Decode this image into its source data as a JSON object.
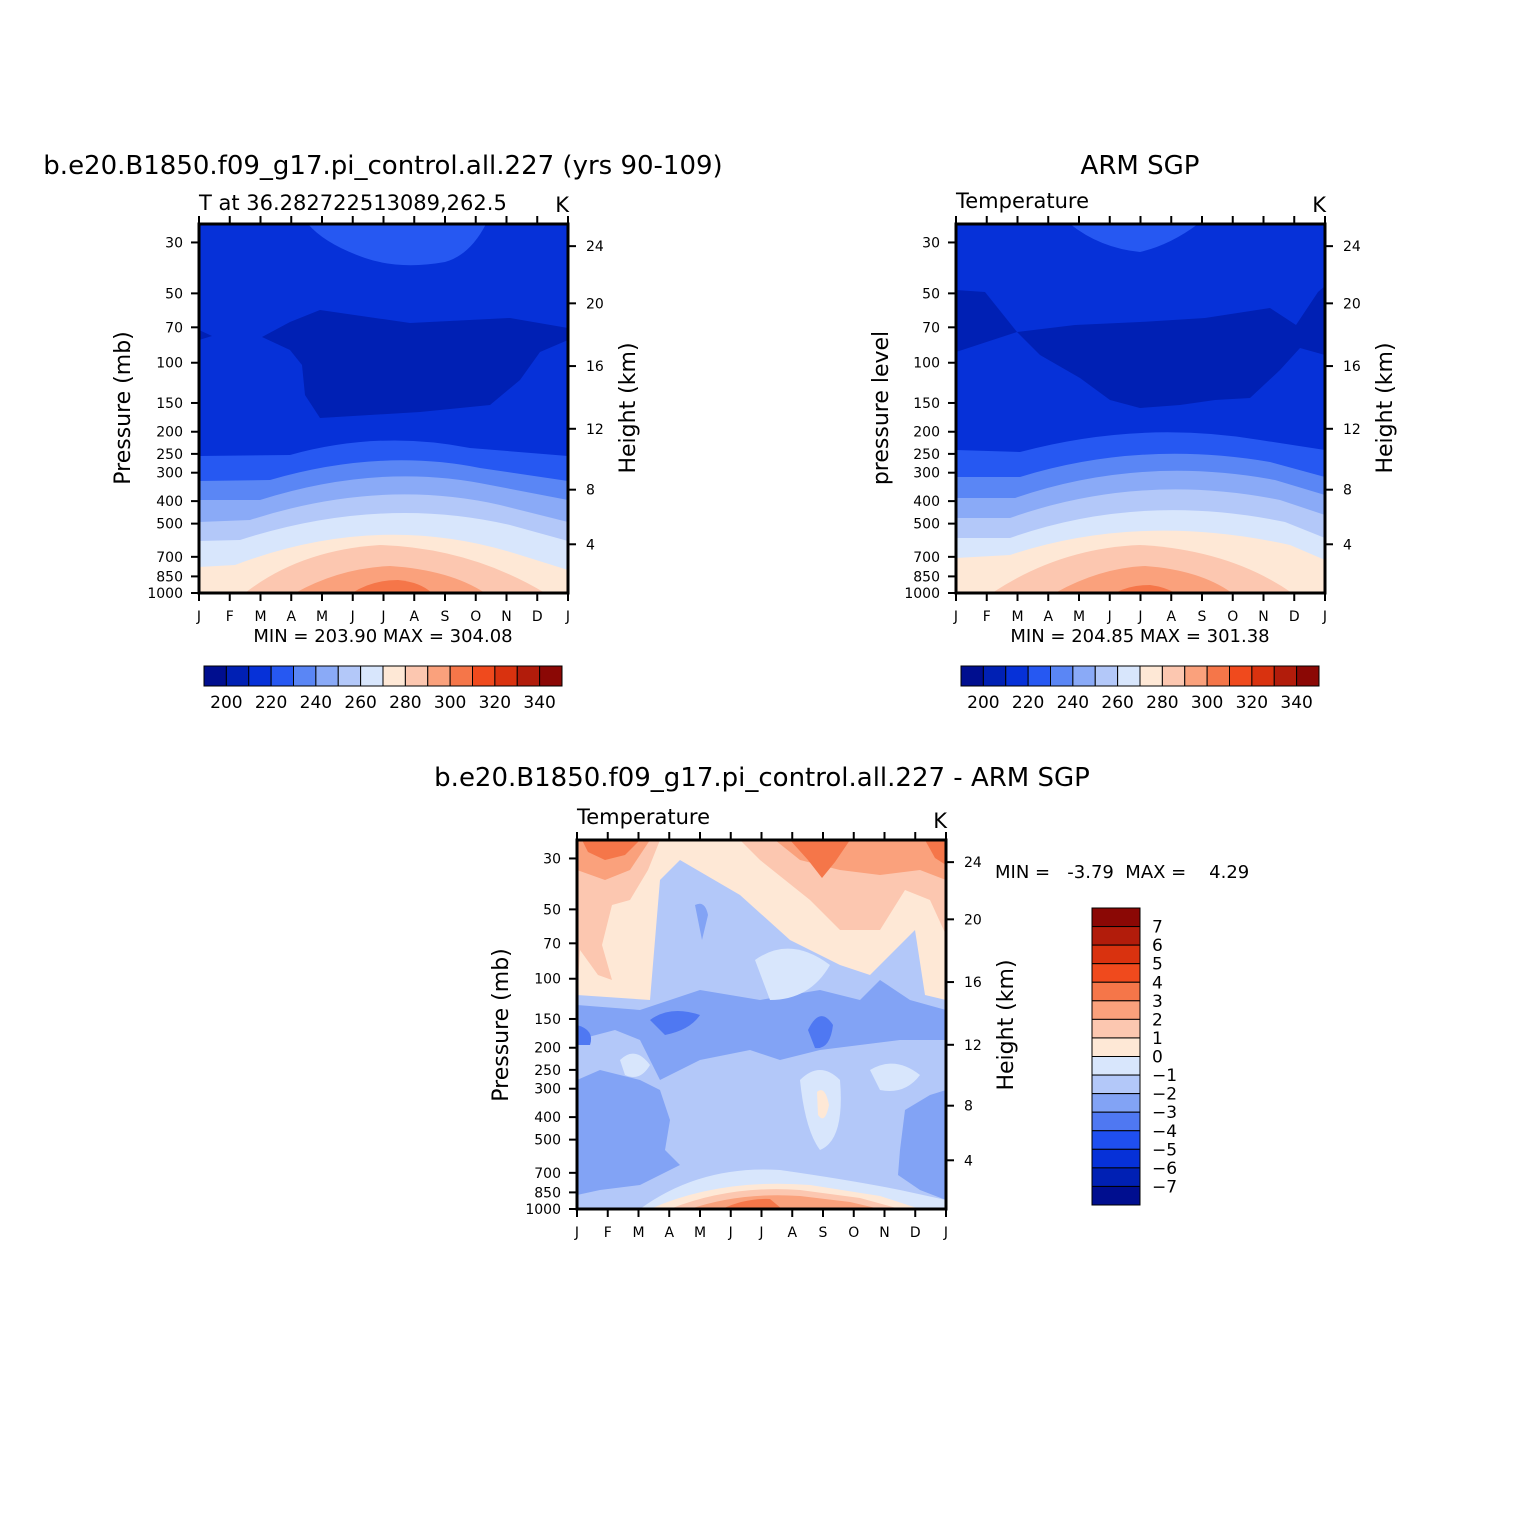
{
  "colors": {
    "abs_scale": [
      "#000e8f",
      "#0020b4",
      "#0631d8",
      "#2658f2",
      "#5a86f5",
      "#8aaaf7",
      "#b3c8f9",
      "#d8e6fc",
      "#fee8d6",
      "#fcc7b0",
      "#faa17c",
      "#f57649",
      "#f04a1d",
      "#d9320f",
      "#b21c0b",
      "#8b0805"
    ],
    "diff_scale": [
      "#000e8f",
      "#0020b4",
      "#0631d8",
      "#1f4ff0",
      "#4f78f2",
      "#82a3f5",
      "#b3c8f9",
      "#d8e6fc",
      "#fee8d6",
      "#fcc7b0",
      "#faa17c",
      "#f57649",
      "#f04a1d",
      "#d9320f",
      "#b21c0b",
      "#8b0805"
    ]
  },
  "chart_data": [
    {
      "type": "heatmap",
      "title": "b.e20.B1850.f09_g17.pi_control.all.227 (yrs 90-109)",
      "subtitle_left": "T at 36.282722513089,262.5",
      "subtitle_right": "K",
      "ylabel": "Pressure (mb)",
      "ylabel_right": "Height (km)",
      "x_ticks": [
        "J",
        "F",
        "M",
        "A",
        "M",
        "J",
        "J",
        "A",
        "S",
        "O",
        "N",
        "D",
        "J"
      ],
      "y_ticks": [
        "30",
        "50",
        "70",
        "100",
        "150",
        "200",
        "250",
        "300",
        "400",
        "500",
        "700",
        "850",
        "1000"
      ],
      "y_right_ticks": [
        "24",
        "20",
        "16",
        "12",
        "8",
        "4"
      ],
      "stats": "MIN = 203.90 MAX = 304.08",
      "colorbar_labels": [
        "200",
        "220",
        "240",
        "260",
        "280",
        "300",
        "320",
        "340"
      ],
      "min": 203.9,
      "max": 304.08,
      "units": "K"
    },
    {
      "type": "heatmap",
      "title": "ARM SGP",
      "subtitle_left": "Temperature",
      "subtitle_right": "K",
      "ylabel": "pressure level",
      "ylabel_right": "Height (km)",
      "x_ticks": [
        "J",
        "F",
        "M",
        "A",
        "M",
        "J",
        "J",
        "A",
        "S",
        "O",
        "N",
        "D",
        "J"
      ],
      "y_ticks": [
        "30",
        "50",
        "70",
        "100",
        "150",
        "200",
        "250",
        "300",
        "400",
        "500",
        "700",
        "850",
        "1000"
      ],
      "y_right_ticks": [
        "24",
        "20",
        "16",
        "12",
        "8",
        "4"
      ],
      "stats": "MIN = 204.85 MAX = 301.38",
      "colorbar_labels": [
        "200",
        "220",
        "240",
        "260",
        "280",
        "300",
        "320",
        "340"
      ],
      "min": 204.85,
      "max": 301.38,
      "units": "K"
    },
    {
      "type": "heatmap",
      "title": "b.e20.B1850.f09_g17.pi_control.all.227 - ARM SGP",
      "subtitle_left": "Temperature",
      "subtitle_right": "K",
      "ylabel": "Pressure (mb)",
      "ylabel_right": "Height (km)",
      "x_ticks": [
        "J",
        "F",
        "M",
        "A",
        "M",
        "J",
        "J",
        "A",
        "S",
        "O",
        "N",
        "D",
        "J"
      ],
      "y_ticks": [
        "30",
        "50",
        "70",
        "100",
        "150",
        "200",
        "250",
        "300",
        "400",
        "500",
        "700",
        "850",
        "1000"
      ],
      "y_right_ticks": [
        "24",
        "20",
        "16",
        "12",
        "8",
        "4"
      ],
      "stats": "MIN =   -3.79  MAX =    4.29",
      "colorbar_labels": [
        "7",
        "6",
        "5",
        "4",
        "3",
        "2",
        "1",
        "0",
        "-1",
        "-2",
        "-3",
        "-4",
        "-5",
        "-6",
        "-7"
      ],
      "min": -3.79,
      "max": 4.29,
      "units": "K"
    }
  ]
}
